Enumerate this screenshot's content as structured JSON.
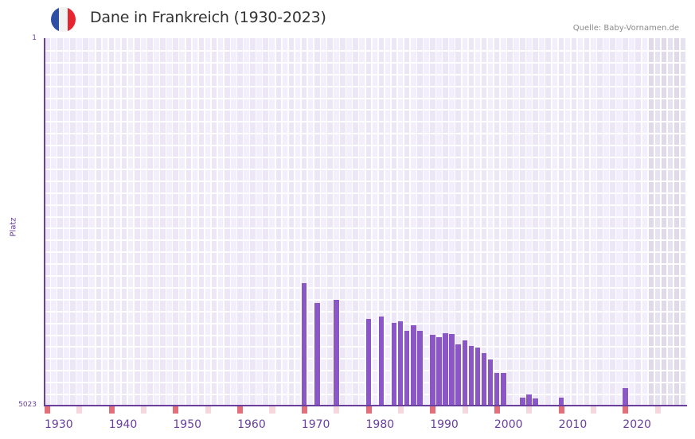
{
  "header": {
    "title": "Dane in Frankreich (1930-2023)",
    "source": "Quelle: Baby-Vornamen.de",
    "flag": {
      "colors": [
        "#2e4fa3",
        "#f2f2f2",
        "#e6252f"
      ]
    }
  },
  "colors": {
    "bar": "#8b56c6",
    "axis": "#6a3fa0",
    "grid_cell_a": "#f2eefb",
    "grid_cell_b": "#ece6f7",
    "future_cell_a": "#e6e2ef",
    "future_cell_b": "#dfd9ea",
    "decade_marker": "#e36f7a",
    "half_decade_marker": "#f6d7de"
  },
  "chart_data": {
    "type": "bar",
    "title": "Dane in Frankreich (1930-2023)",
    "xlabel": "",
    "ylabel": "Platz",
    "y_axis_inverted": true,
    "ylim": [
      1,
      5023
    ],
    "xlim": [
      1930,
      2029
    ],
    "grid": true,
    "x_ticks": [
      "1930",
      "1940",
      "1950",
      "1960",
      "1970",
      "1980",
      "1990",
      "2000",
      "2010",
      "2020"
    ],
    "y_ticks": [
      "1",
      "5023"
    ],
    "shaded_future_from": 2024,
    "categories": [
      1970,
      1972,
      1975,
      1980,
      1982,
      1984,
      1985,
      1986,
      1987,
      1988,
      1990,
      1991,
      1992,
      1993,
      1994,
      1995,
      1996,
      1997,
      1998,
      1999,
      2000,
      2001,
      2004,
      2005,
      2006,
      2010,
      2020
    ],
    "values": [
      3350,
      3620,
      3580,
      3840,
      3810,
      3890,
      3870,
      4000,
      3930,
      4000,
      4050,
      4090,
      4030,
      4040,
      4190,
      4130,
      4210,
      4230,
      4310,
      4390,
      4580,
      4580,
      4910,
      4870,
      4920,
      4910,
      4780
    ]
  },
  "axis": {
    "ylabel": "Platz",
    "ytick_top": "1",
    "ytick_bottom": "5023",
    "xticks": [
      "1930",
      "1940",
      "1950",
      "1960",
      "1970",
      "1980",
      "1990",
      "2000",
      "2010",
      "2020"
    ]
  }
}
